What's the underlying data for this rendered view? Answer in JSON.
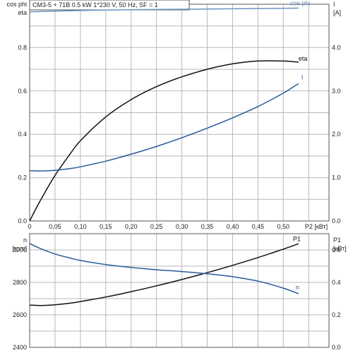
{
  "title": "CM3-5 + 71B   0.5 kW   1*230 V, 50 Hz, SF = 1",
  "colors": {
    "eta": "#111111",
    "current": "#2a5b9a",
    "cos_phi": "#6a93c4",
    "p1": "#111111",
    "n": "#2a5b9a",
    "grid": "#b9b9b9",
    "axis": "#555555"
  },
  "chart_data": [
    {
      "type": "line",
      "title": "CM3-5 + 71B   0.5 kW   1*230 V, 50 Hz, SF = 1",
      "xlabel": "P2 [кВт]",
      "xlim": [
        0,
        0.59
      ],
      "xticks": [
        "0",
        "0,05",
        "0,10",
        "0,15",
        "0,20",
        "0,25",
        "0,30",
        "0,35",
        "0,40",
        "0,45",
        "0,50"
      ],
      "ylabel_left": "cos phi\neta",
      "ylim_left": [
        0,
        1.0
      ],
      "yticks_left": [
        "0.0",
        "0.2",
        "0.4",
        "0.6",
        "0.8"
      ],
      "ylabel_right": "I\n[A]",
      "ylim_right": [
        0,
        5.0
      ],
      "yticks_right": [
        "0.0",
        "1.0",
        "2.0",
        "3.0",
        "4.0"
      ],
      "grid": true,
      "series": [
        {
          "name": "cos phi",
          "axis": "left",
          "color": "#6a93c4",
          "x": [
            0.0,
            0.05,
            0.1,
            0.15,
            0.2,
            0.25,
            0.3,
            0.35,
            0.4,
            0.45,
            0.5,
            0.53
          ],
          "y": [
            0.965,
            0.968,
            0.971,
            0.973,
            0.975,
            0.976,
            0.977,
            0.978,
            0.979,
            0.98,
            0.981,
            0.982
          ]
        },
        {
          "name": "eta",
          "axis": "left",
          "color": "#111111",
          "x": [
            0.0,
            0.02,
            0.05,
            0.08,
            0.1,
            0.15,
            0.2,
            0.25,
            0.3,
            0.35,
            0.4,
            0.45,
            0.5,
            0.53
          ],
          "y": [
            0.0,
            0.09,
            0.21,
            0.31,
            0.37,
            0.48,
            0.56,
            0.62,
            0.665,
            0.7,
            0.725,
            0.738,
            0.738,
            0.733
          ]
        },
        {
          "name": "I",
          "axis": "right",
          "color": "#2a5b9a",
          "x": [
            0.0,
            0.02,
            0.05,
            0.08,
            0.1,
            0.15,
            0.2,
            0.25,
            0.3,
            0.35,
            0.4,
            0.45,
            0.5,
            0.53
          ],
          "y": [
            1.16,
            1.155,
            1.17,
            1.21,
            1.25,
            1.38,
            1.54,
            1.72,
            1.92,
            2.14,
            2.38,
            2.64,
            2.95,
            3.17
          ]
        }
      ]
    },
    {
      "type": "line",
      "xlim": [
        0,
        0.59
      ],
      "ylabel_left": "n\n[rpm]",
      "ylim_left": [
        2400,
        3100
      ],
      "yticks_left": [
        "2400",
        "2600",
        "2800",
        "3000"
      ],
      "ylabel_right": "P1\n[кВт]",
      "ylim_right": [
        0,
        0.7
      ],
      "yticks_right": [
        "0.0",
        "0.2",
        "0.4",
        "0.6"
      ],
      "grid": true,
      "series": [
        {
          "name": "P1",
          "axis": "right",
          "color": "#111111",
          "x": [
            0.0,
            0.02,
            0.05,
            0.08,
            0.1,
            0.15,
            0.2,
            0.25,
            0.3,
            0.35,
            0.4,
            0.45,
            0.5,
            0.53
          ],
          "y": [
            0.26,
            0.258,
            0.262,
            0.272,
            0.282,
            0.31,
            0.343,
            0.379,
            0.418,
            0.46,
            0.505,
            0.553,
            0.605,
            0.638
          ]
        },
        {
          "name": "n",
          "axis": "left",
          "color": "#2a5b9a",
          "x": [
            0.0,
            0.02,
            0.05,
            0.08,
            0.1,
            0.15,
            0.2,
            0.25,
            0.3,
            0.35,
            0.4,
            0.45,
            0.5,
            0.53
          ],
          "y": [
            3040,
            3010,
            2975,
            2950,
            2935,
            2910,
            2892,
            2878,
            2867,
            2853,
            2835,
            2808,
            2765,
            2730
          ]
        }
      ]
    }
  ]
}
